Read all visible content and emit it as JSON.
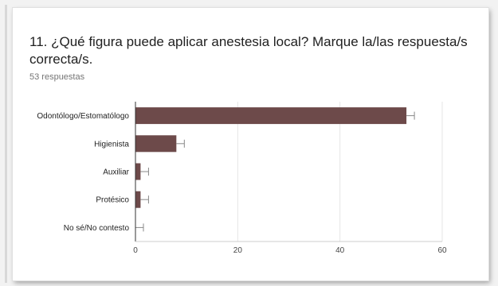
{
  "question": {
    "title": "11. ¿Qué figura puede aplicar anestesia local? Marque la/las respuesta/s correcta/s.",
    "responses": "53 respuestas"
  },
  "colors": {
    "bar": "#6d4a4a",
    "grid": "#e6e6e6",
    "axis": "#333333"
  },
  "chart_data": {
    "type": "bar",
    "orientation": "horizontal",
    "title": "",
    "xlabel": "",
    "ylabel": "",
    "categories": [
      "Odontólogo/Estomatólogo",
      "Higienista",
      "Auxiliar",
      "Protésico",
      "No sé/No contesto"
    ],
    "values": [
      53,
      8,
      1,
      1,
      0
    ],
    "xlim": [
      0,
      60
    ],
    "ticks": [
      0,
      20,
      40,
      60
    ],
    "grid": true,
    "legend": "none",
    "error_bars": true
  }
}
